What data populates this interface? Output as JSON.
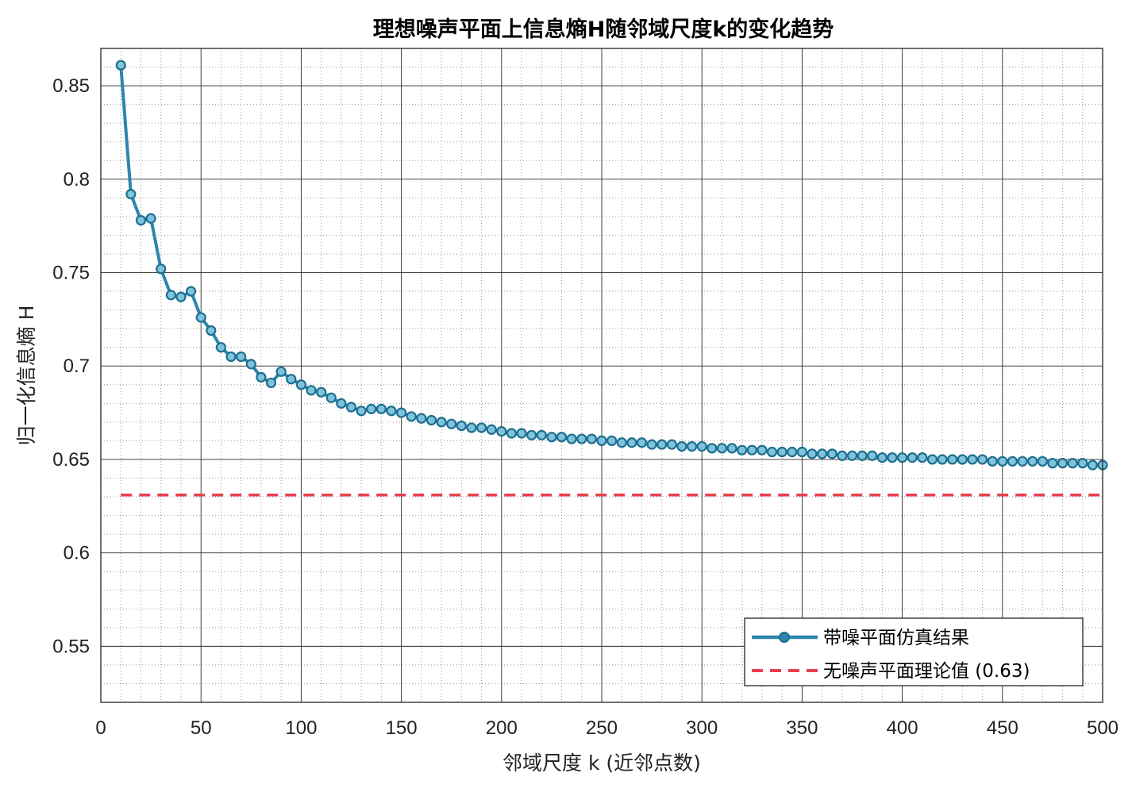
{
  "chart_data": {
    "type": "line",
    "title": "理想噪声平面上信息熵H随邻域尺度k的变化趋势",
    "xlabel": "邻域尺度 k (近邻点数)",
    "ylabel": "归一化信息熵 H",
    "xlim": [
      0,
      500
    ],
    "ylim": [
      0.52,
      0.87
    ],
    "xticks": [
      0,
      50,
      100,
      150,
      200,
      250,
      300,
      350,
      400,
      450,
      500
    ],
    "xtick_labels": [
      "0",
      "50",
      "100",
      "150",
      "200",
      "250",
      "300",
      "350",
      "400",
      "450",
      "500"
    ],
    "yticks": [
      0.55,
      0.6,
      0.65,
      0.7,
      0.75,
      0.8,
      0.85
    ],
    "ytick_labels": [
      "0.55",
      "0.6",
      "0.65",
      "0.7",
      "0.75",
      "0.8",
      "0.85"
    ],
    "grid": "major and minor",
    "legend_position": "bottom-right",
    "series": [
      {
        "name": "带噪平面仿真结果",
        "color": "#2e86ab",
        "style": "solid-with-circle-markers",
        "x": [
          10,
          15,
          20,
          25,
          30,
          35,
          40,
          45,
          50,
          55,
          60,
          65,
          70,
          75,
          80,
          85,
          90,
          95,
          100,
          105,
          110,
          115,
          120,
          125,
          130,
          135,
          140,
          145,
          150,
          155,
          160,
          165,
          170,
          175,
          180,
          185,
          190,
          195,
          200,
          205,
          210,
          215,
          220,
          225,
          230,
          235,
          240,
          245,
          250,
          255,
          260,
          265,
          270,
          275,
          280,
          285,
          290,
          295,
          300,
          305,
          310,
          315,
          320,
          325,
          330,
          335,
          340,
          345,
          350,
          355,
          360,
          365,
          370,
          375,
          380,
          385,
          390,
          395,
          400,
          405,
          410,
          415,
          420,
          425,
          430,
          435,
          440,
          445,
          450,
          455,
          460,
          465,
          470,
          475,
          480,
          485,
          490,
          495,
          500
        ],
        "y": [
          0.861,
          0.792,
          0.778,
          0.779,
          0.752,
          0.738,
          0.737,
          0.74,
          0.726,
          0.719,
          0.71,
          0.705,
          0.705,
          0.701,
          0.694,
          0.691,
          0.697,
          0.693,
          0.69,
          0.687,
          0.686,
          0.683,
          0.68,
          0.678,
          0.676,
          0.677,
          0.677,
          0.676,
          0.675,
          0.673,
          0.672,
          0.671,
          0.67,
          0.669,
          0.668,
          0.667,
          0.667,
          0.666,
          0.665,
          0.664,
          0.664,
          0.663,
          0.663,
          0.662,
          0.662,
          0.661,
          0.661,
          0.661,
          0.66,
          0.66,
          0.659,
          0.659,
          0.659,
          0.658,
          0.658,
          0.658,
          0.657,
          0.657,
          0.657,
          0.656,
          0.656,
          0.656,
          0.655,
          0.655,
          0.655,
          0.654,
          0.654,
          0.654,
          0.654,
          0.653,
          0.653,
          0.653,
          0.652,
          0.652,
          0.652,
          0.652,
          0.651,
          0.651,
          0.651,
          0.651,
          0.651,
          0.65,
          0.65,
          0.65,
          0.65,
          0.65,
          0.65,
          0.649,
          0.649,
          0.649,
          0.649,
          0.649,
          0.649,
          0.648,
          0.648,
          0.648,
          0.648,
          0.647,
          0.647
        ]
      },
      {
        "name": "无噪声平面理论值 (0.63)",
        "color": "#e8404f",
        "style": "dashed",
        "x": [
          10,
          500
        ],
        "y": [
          0.631,
          0.631
        ]
      }
    ]
  }
}
